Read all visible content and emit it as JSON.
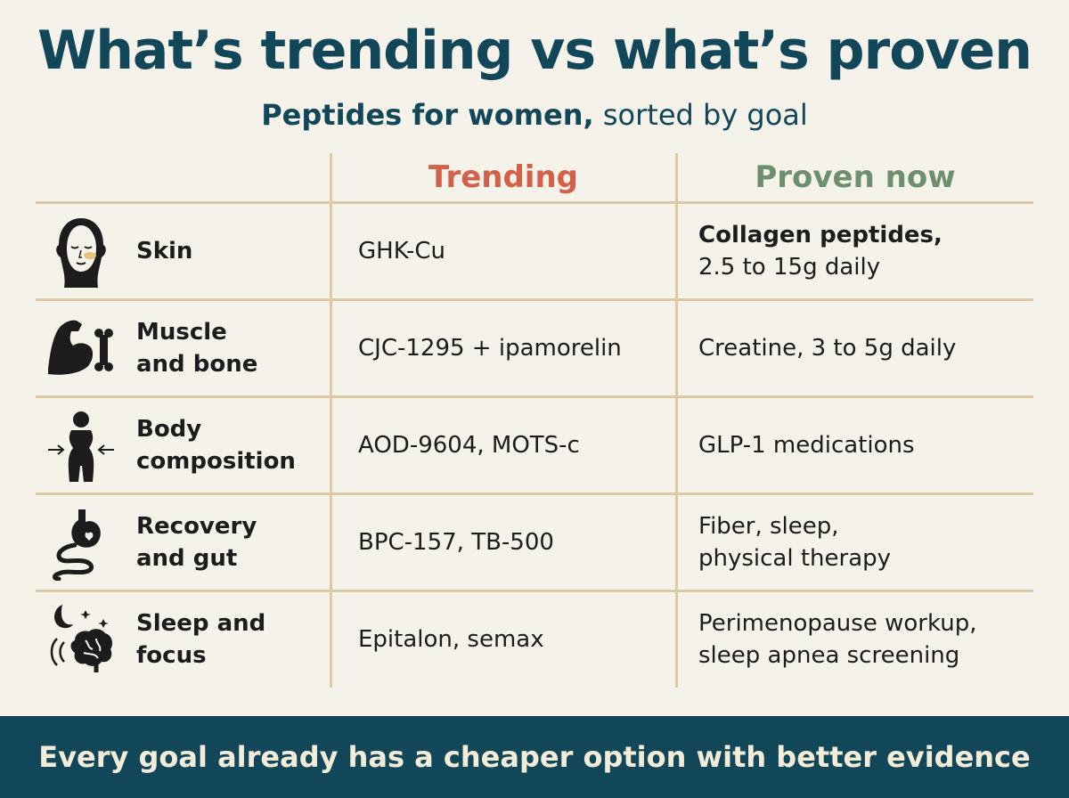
{
  "header": {
    "title": "What’s trending vs what’s proven",
    "subtitle_strong": "Peptides for women,",
    "subtitle_rest": " sorted by goal"
  },
  "columns": {
    "trending": "Trending",
    "proven": "Proven now"
  },
  "rows": [
    {
      "icon": "face-icon",
      "goal": [
        "Skin"
      ],
      "trending": "GHK-Cu",
      "proven": [
        "Collagen peptides,",
        "2.5 to 15g daily"
      ]
    },
    {
      "icon": "muscle-bone-icon",
      "goal": [
        "Muscle",
        "and bone"
      ],
      "trending": "CJC-1295 + ipamorelin",
      "proven": [
        "Creatine, 3 to 5g daily"
      ]
    },
    {
      "icon": "body-silhouette-icon",
      "goal": [
        "Body",
        "composition"
      ],
      "trending": "AOD-9604, MOTS-c",
      "proven": [
        "GLP-1 medications"
      ]
    },
    {
      "icon": "stomach-gut-icon",
      "goal": [
        "Recovery",
        "and gut"
      ],
      "trending": "BPC-157, TB-500",
      "proven": [
        "Fiber, sleep,",
        "physical therapy"
      ]
    },
    {
      "icon": "moon-brain-icon",
      "goal": [
        "Sleep and",
        "focus"
      ],
      "trending": "Epitalon, semax",
      "proven": [
        "Perimenopause workup,",
        "sleep apnea screening"
      ]
    }
  ],
  "footer": {
    "text": "Every goal already has a cheaper option with better evidence"
  },
  "colors": {
    "title": "#12475a",
    "trending": "#d4604a",
    "proven": "#6d8f6e",
    "footer_bg": "#12475a",
    "background": "#f5f2ea"
  }
}
